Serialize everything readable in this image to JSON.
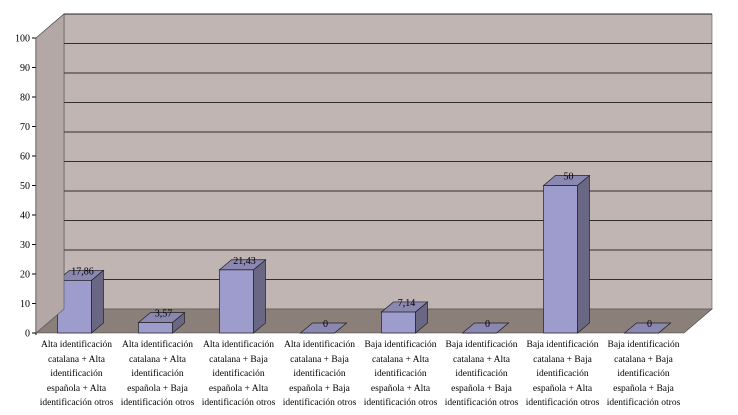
{
  "chart_data": {
    "type": "bar",
    "title": "",
    "xlabel": "",
    "ylabel": "",
    "categories": [
      "Alta identificación catalana + Alta identificación española + Alta identificación otros",
      "Alta identificación catalana + Alta identificación española + Baja identificación otros",
      "Alta identificación catalana + Baja identificación española + Alta identificación otros",
      "Alta identificación catalana + Baja identificación española + Baja identificación otros",
      "Baja identificación catalana + Alta identificación española + Alta identificación otros",
      "Baja identificación catalana + Alta identificación española + Baja identificación otros",
      "Baja identificación catalana + Baja identificación española + Alta identificación otros",
      "Baja identificación catalana + Baja identificación española + Baja identificación otros"
    ],
    "values": [
      17.86,
      3.57,
      21.43,
      0,
      7.14,
      0,
      50,
      0
    ],
    "value_labels": [
      "17,86",
      "3,57",
      "21,43",
      "0",
      "7,14",
      "0",
      "50",
      "0"
    ],
    "ylim": [
      0,
      100
    ],
    "yticks": [
      0,
      10,
      20,
      30,
      40,
      50,
      60,
      70,
      80,
      90,
      100
    ],
    "grid": true,
    "legend": "none",
    "three_d": true,
    "colors": {
      "bar_front": "#9e9ccc",
      "bar_side": "#6a6784",
      "bar_top": "#8a87b0",
      "wall": "#c0b5b3",
      "floor": "#8a7f79",
      "grid": "#000000"
    }
  },
  "category_lines": [
    [
      "Alta identificación",
      "catalana + Alta",
      "identificación",
      "española + Alta",
      "identificación otros"
    ],
    [
      "Alta identificación",
      "catalana + Alta",
      "identificación",
      "española + Baja",
      "identificación otros"
    ],
    [
      "Alta identificación",
      "catalana + Baja",
      "identificación",
      "española + Alta",
      "identificación otros"
    ],
    [
      "Alta identificación",
      "catalana + Baja",
      "identificación",
      "española + Baja",
      "identificación otros"
    ],
    [
      "Baja identificación",
      "catalana + Alta",
      "identificación",
      "española + Alta",
      "identificación otros"
    ],
    [
      "Baja identificación",
      "catalana + Alta",
      "identificación",
      "española + Baja",
      "identificación otros"
    ],
    [
      "Baja identificación",
      "catalana + Baja",
      "identificación",
      "española + Alta",
      "identificación otros"
    ],
    [
      "Baja identificación",
      "catalana + Baja",
      "identificación",
      "española + Baja",
      "identificación otros"
    ]
  ]
}
